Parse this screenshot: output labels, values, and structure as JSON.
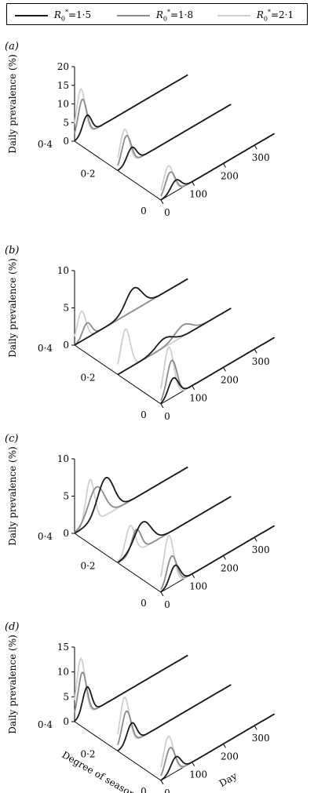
{
  "legend": {
    "series": [
      {
        "name": "1·5",
        "prefix": "R",
        "sub": "0",
        "sup": "*",
        "color": "#1a1a1a"
      },
      {
        "name": "1·8",
        "prefix": "R",
        "sub": "0",
        "sup": "*",
        "color": "#8c8c8c"
      },
      {
        "name": "2·1",
        "prefix": "R",
        "sub": "0",
        "sup": "*",
        "color": "#cfcfcf"
      }
    ]
  },
  "chart_data": [
    {
      "type": "line",
      "panel": "(a)",
      "zlabel": "Daily prevalence (%)",
      "zticks": [
        "0",
        "5",
        "10",
        "15",
        "20"
      ],
      "zlim": [
        0,
        20
      ],
      "xlabel": "",
      "ylabel": "",
      "day_ticks": [
        "0",
        "100",
        "200",
        "300"
      ],
      "seasonality_ticks": [
        "0",
        "0·2",
        "0·4"
      ],
      "seasonality_levels": [
        0.4,
        0.2,
        0
      ],
      "series": [
        {
          "name": "R0*=1·5",
          "color": "#1a1a1a",
          "peaks": [
            {
              "day": 40,
              "value": 5
            },
            {
              "day": 45,
              "value": 4
            },
            {
              "day": 48,
              "value": 3
            }
          ]
        },
        {
          "name": "R0*=1·8",
          "color": "#8c8c8c",
          "peaks": [
            {
              "day": 25,
              "value": 10
            },
            {
              "day": 28,
              "value": 8
            },
            {
              "day": 30,
              "value": 6
            }
          ]
        },
        {
          "name": "R0*=2·1",
          "color": "#cfcfcf",
          "peaks": [
            {
              "day": 20,
              "value": 13
            },
            {
              "day": 22,
              "value": 10
            },
            {
              "day": 24,
              "value": 8
            }
          ]
        }
      ]
    },
    {
      "type": "line",
      "panel": "(b)",
      "zlabel": "Daily prevalence (%)",
      "zticks": [
        "0",
        "5",
        "10"
      ],
      "zlim": [
        0,
        10
      ],
      "xlabel": "",
      "ylabel": "",
      "day_ticks": [
        "0",
        "100",
        "200",
        "300"
      ],
      "seasonality_ticks": [
        "0",
        "0·2",
        "0·4"
      ],
      "seasonality_levels": [
        0.4,
        0.2,
        0
      ],
      "series": [
        {
          "name": "R0*=1·5",
          "color": "#1a1a1a",
          "peaks": [
            {
              "day": 190,
              "value": 3
            },
            {
              "day": 150,
              "value": 1.2
            },
            {
              "day": 40,
              "value": 2.5
            }
          ]
        },
        {
          "name": "R0*=1·8",
          "color": "#8c8c8c",
          "peaks": [
            {
              "day": 40,
              "value": 2
            },
            {
              "day": 210,
              "value": 1.5
            },
            {
              "day": 35,
              "value": 5
            }
          ]
        },
        {
          "name": "R0*=2·1",
          "color": "#cfcfcf",
          "peaks": [
            {
              "day": 22,
              "value": 4
            },
            {
              "day": 25,
              "value": 5.5
            },
            {
              "day": 25,
              "value": 7
            }
          ]
        }
      ]
    },
    {
      "type": "line",
      "panel": "(c)",
      "zlabel": "Daily prevalence (%)",
      "zticks": [
        "0",
        "5",
        "10"
      ],
      "zlim": [
        0,
        10
      ],
      "xlabel": "",
      "ylabel": "",
      "day_ticks": [
        "0",
        "100",
        "200",
        "300"
      ],
      "seasonality_ticks": [
        "0",
        "0·2",
        "0·4"
      ],
      "seasonality_levels": [
        0.4,
        0.2,
        0
      ],
      "series": [
        {
          "name": "R0*=1·5",
          "color": "#1a1a1a",
          "peaks": [
            {
              "day": 100,
              "value": 5
            },
            {
              "day": 80,
              "value": 3.5
            },
            {
              "day": 45,
              "value": 2.5
            }
          ]
        },
        {
          "name": "R0*=1·8",
          "color": "#8c8c8c",
          "peaks": [
            {
              "day": 70,
              "value": 4.5
            },
            {
              "day": 60,
              "value": 3
            },
            {
              "day": 35,
              "value": 4
            }
          ]
        },
        {
          "name": "R0*=2·1",
          "color": "#cfcfcf",
          "peaks": [
            {
              "day": 50,
              "value": 6
            },
            {
              "day": 40,
              "value": 4
            },
            {
              "day": 25,
              "value": 7
            }
          ]
        }
      ]
    },
    {
      "type": "line",
      "panel": "(d)",
      "zlabel": "Daily prevalence (%)",
      "zticks": [
        "0",
        "5",
        "10",
        "15"
      ],
      "zlim": [
        0,
        15
      ],
      "xlabel": "Day",
      "ylabel": "Degree of seasonality",
      "day_ticks": [
        "0",
        "100",
        "200",
        "300"
      ],
      "seasonality_ticks": [
        "0",
        "0·2",
        "0·4"
      ],
      "seasonality_levels": [
        0.4,
        0.2,
        0
      ],
      "series": [
        {
          "name": "R0*=1·5",
          "color": "#1a1a1a",
          "peaks": [
            {
              "day": 40,
              "value": 5.5
            },
            {
              "day": 45,
              "value": 4
            },
            {
              "day": 48,
              "value": 3
            }
          ]
        },
        {
          "name": "R0*=1·8",
          "color": "#8c8c8c",
          "peaks": [
            {
              "day": 25,
              "value": 9
            },
            {
              "day": 28,
              "value": 7
            },
            {
              "day": 30,
              "value": 5.5
            }
          ]
        },
        {
          "name": "R0*=2·1",
          "color": "#cfcfcf",
          "peaks": [
            {
              "day": 20,
              "value": 12
            },
            {
              "day": 22,
              "value": 10
            },
            {
              "day": 24,
              "value": 8
            }
          ]
        }
      ]
    }
  ]
}
